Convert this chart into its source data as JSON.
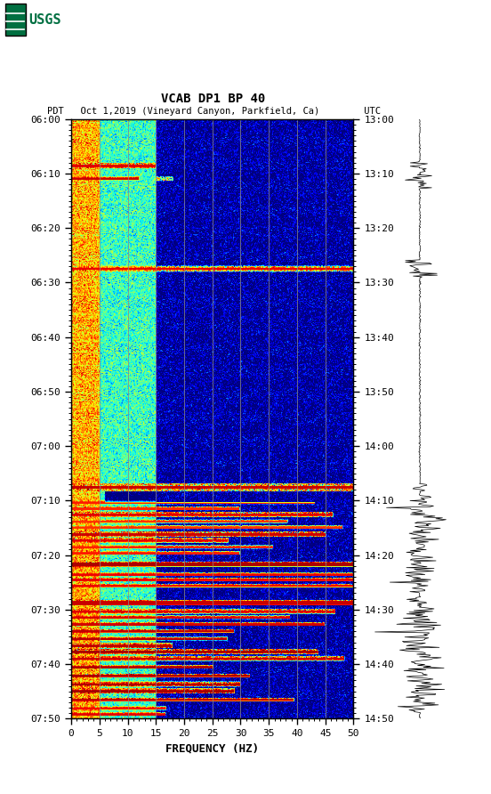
{
  "title_line1": "VCAB DP1 BP 40",
  "title_line2": "PDT   Oct 1,2019 (Vineyard Canyon, Parkfield, Ca)        UTC",
  "xlabel": "FREQUENCY (HZ)",
  "freq_min": 0,
  "freq_max": 50,
  "ytick_labels_left": [
    "06:00",
    "06:10",
    "06:20",
    "06:30",
    "06:40",
    "06:50",
    "07:00",
    "07:10",
    "07:20",
    "07:30",
    "07:40",
    "07:50"
  ],
  "ytick_labels_right": [
    "13:00",
    "13:10",
    "13:20",
    "13:30",
    "13:40",
    "13:50",
    "14:00",
    "14:10",
    "14:20",
    "14:30",
    "14:40",
    "14:50"
  ],
  "xtick_labels": [
    "0",
    "5",
    "10",
    "15",
    "20",
    "25",
    "30",
    "35",
    "40",
    "45",
    "50"
  ],
  "background_color": "#ffffff",
  "colormap": "jet",
  "fig_width": 5.52,
  "fig_height": 8.92,
  "dpi": 100,
  "usgs_logo_color": "#006f41",
  "vertical_lines_freq": [
    5,
    10,
    15,
    20,
    25,
    30,
    35,
    40,
    45
  ]
}
